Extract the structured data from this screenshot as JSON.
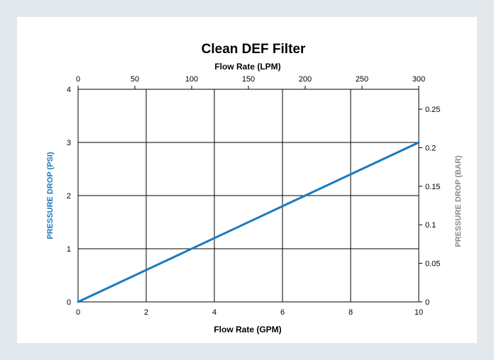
{
  "chart_data": {
    "type": "line",
    "title": "Clean DEF Filter",
    "xlabel": "Flow Rate (GPM)",
    "x2label": "Flow Rate (LPM)",
    "ylabel": "PRESSURE DROP (PSI)",
    "y2label": "PRESSURE DROP (BAR)",
    "xlim": [
      0,
      10
    ],
    "ylim": [
      0,
      4
    ],
    "x2lim": [
      0,
      300
    ],
    "y2lim": [
      0,
      0.2758
    ],
    "x_ticks": [
      0,
      2,
      4,
      6,
      8,
      10
    ],
    "x2_ticks": [
      0,
      50,
      100,
      150,
      200,
      250,
      300
    ],
    "y_ticks": [
      0,
      1,
      2,
      3,
      4
    ],
    "y2_ticks": [
      "0",
      "0.05",
      "0.1",
      "0.15",
      "0.2",
      "0.25"
    ],
    "grid": true,
    "series": [
      {
        "x": [
          0,
          10
        ],
        "y": [
          0,
          3
        ],
        "color": "#1a7abf"
      }
    ],
    "colors": {
      "series": "#1a7abf",
      "ylabel": "#1a7abf",
      "y2label": "#8c8c8c",
      "grid": "#000000",
      "background": "#e3e8ec"
    }
  }
}
